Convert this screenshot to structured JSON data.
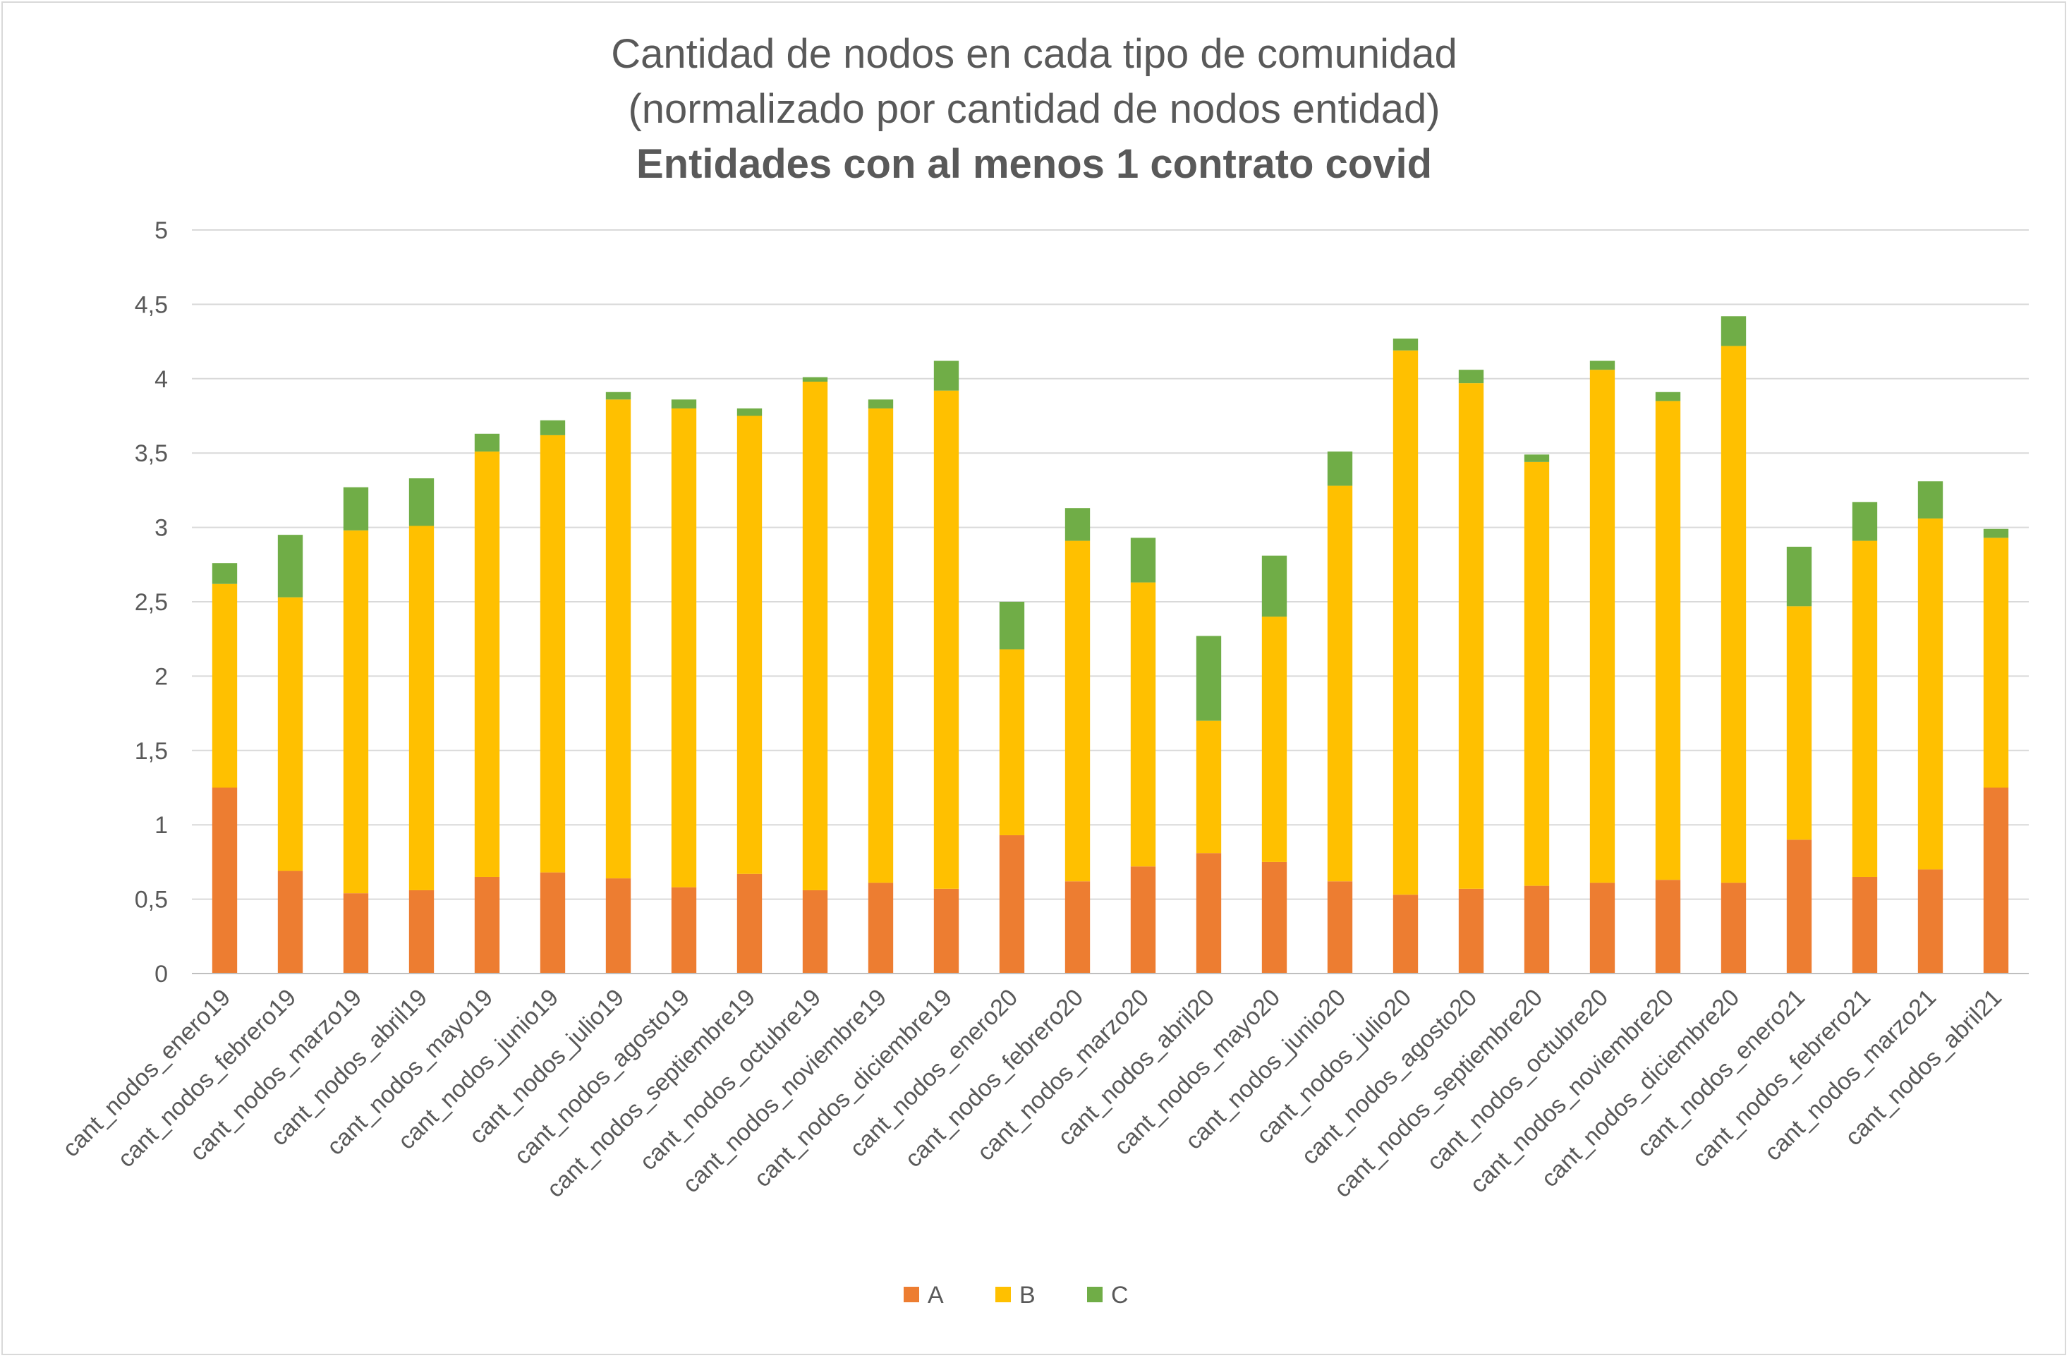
{
  "chart_data": {
    "type": "bar",
    "stacked": true,
    "title": "Cantidad de nodos en cada tipo de comunidad",
    "subtitle": "(normalizado por cantidad de nodos entidad)",
    "subtitle_bold": "Entidades con al menos 1 contrato covid",
    "xlabel": "",
    "ylabel": "",
    "ylim": [
      0,
      5
    ],
    "yticks": [
      "0",
      "0,5",
      "1",
      "1,5",
      "2",
      "2,5",
      "3",
      "3,5",
      "4",
      "4,5",
      "5"
    ],
    "grid": true,
    "legend_position": "bottom",
    "categories": [
      "cant_nodos_enero19",
      "cant_nodos_febrero19",
      "cant_nodos_marzo19",
      "cant_nodos_abril19",
      "cant_nodos_mayo19",
      "cant_nodos_junio19",
      "cant_nodos_julio19",
      "cant_nodos_agosto19",
      "cant_nodos_septiembre19",
      "cant_nodos_octubre19",
      "cant_nodos_noviembre19",
      "cant_nodos_diciembre19",
      "cant_nodos_enero20",
      "cant_nodos_febrero20",
      "cant_nodos_marzo20",
      "cant_nodos_abril20",
      "cant_nodos_mayo20",
      "cant_nodos_junio20",
      "cant_nodos_julio20",
      "cant_nodos_agosto20",
      "cant_nodos_septiembre20",
      "cant_nodos_octubre20",
      "cant_nodos_noviembre20",
      "cant_nodos_diciembre20",
      "cant_nodos_enero21",
      "cant_nodos_febrero21",
      "cant_nodos_marzo21",
      "cant_nodos_abril21"
    ],
    "series": [
      {
        "name": "A",
        "color": "#ed7d31",
        "values": [
          1.25,
          0.69,
          0.54,
          0.56,
          0.65,
          0.68,
          0.64,
          0.58,
          0.67,
          0.56,
          0.61,
          0.57,
          0.93,
          0.62,
          0.72,
          0.81,
          0.75,
          0.62,
          0.53,
          0.57,
          0.59,
          0.61,
          0.63,
          0.61,
          0.9,
          0.65,
          0.7,
          1.25
        ]
      },
      {
        "name": "B",
        "color": "#ffc000",
        "values": [
          1.37,
          1.84,
          2.44,
          2.45,
          2.86,
          2.94,
          3.22,
          3.22,
          3.08,
          3.42,
          3.19,
          3.35,
          1.25,
          2.29,
          1.91,
          0.89,
          1.65,
          2.66,
          3.66,
          3.4,
          2.85,
          3.45,
          3.22,
          3.61,
          1.57,
          2.26,
          2.36,
          1.68
        ]
      },
      {
        "name": "C",
        "color": "#70ad47",
        "values": [
          0.14,
          0.42,
          0.29,
          0.32,
          0.12,
          0.1,
          0.05,
          0.06,
          0.05,
          0.03,
          0.06,
          0.2,
          0.32,
          0.22,
          0.3,
          0.57,
          0.41,
          0.23,
          0.08,
          0.09,
          0.05,
          0.06,
          0.06,
          0.2,
          0.4,
          0.26,
          0.25,
          0.06
        ]
      }
    ]
  }
}
